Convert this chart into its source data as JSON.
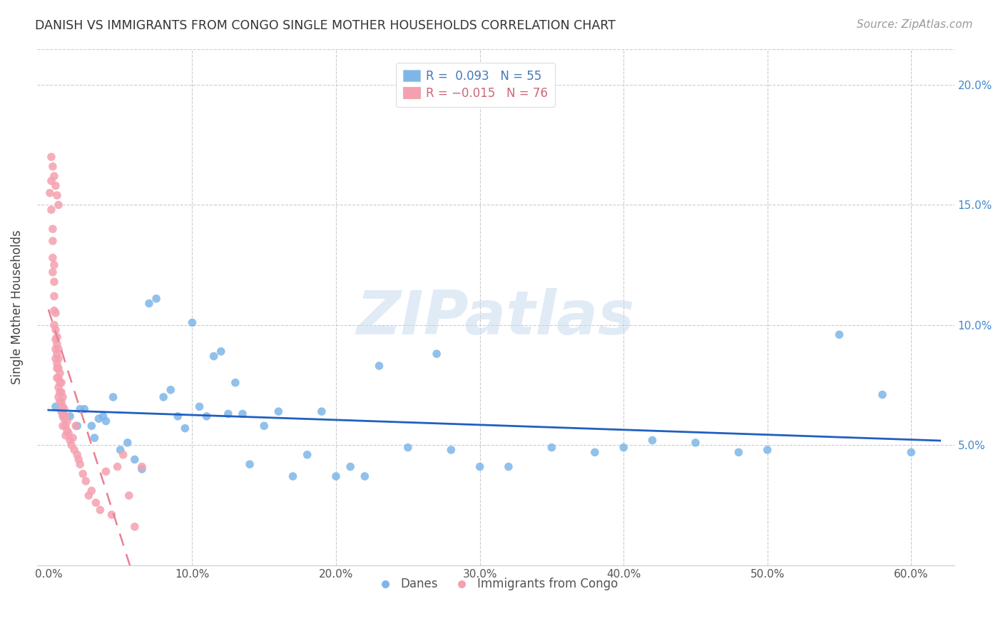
{
  "title": "DANISH VS IMMIGRANTS FROM CONGO SINGLE MOTHER HOUSEHOLDS CORRELATION CHART",
  "source": "Source: ZipAtlas.com",
  "ylabel": "Single Mother Households",
  "xlabel_ticks": [
    "0.0%",
    "10.0%",
    "20.0%",
    "30.0%",
    "40.0%",
    "50.0%",
    "60.0%"
  ],
  "xlabel_vals": [
    0.0,
    0.1,
    0.2,
    0.3,
    0.4,
    0.5,
    0.6
  ],
  "ylabel_ticks": [
    "5.0%",
    "10.0%",
    "15.0%",
    "20.0%"
  ],
  "ylabel_vals": [
    0.05,
    0.1,
    0.15,
    0.2
  ],
  "xlim": [
    -0.008,
    0.63
  ],
  "ylim": [
    0.0,
    0.215
  ],
  "danes_color": "#7EB6E8",
  "congo_color": "#F5A0B0",
  "danes_line_color": "#2060C0",
  "congo_line_color": "#E88090",
  "danes_R": 0.093,
  "danes_N": 55,
  "congo_R": -0.015,
  "congo_N": 76,
  "legend_label_danes": "Danes",
  "legend_label_congo": "Immigrants from Congo",
  "watermark": "ZIPatlas",
  "danes_x": [
    0.005,
    0.01,
    0.015,
    0.02,
    0.022,
    0.025,
    0.03,
    0.032,
    0.035,
    0.038,
    0.04,
    0.045,
    0.05,
    0.055,
    0.06,
    0.065,
    0.07,
    0.075,
    0.08,
    0.085,
    0.09,
    0.095,
    0.1,
    0.105,
    0.11,
    0.115,
    0.12,
    0.125,
    0.13,
    0.135,
    0.14,
    0.15,
    0.16,
    0.17,
    0.18,
    0.19,
    0.2,
    0.21,
    0.22,
    0.23,
    0.25,
    0.27,
    0.28,
    0.3,
    0.32,
    0.35,
    0.38,
    0.4,
    0.42,
    0.45,
    0.48,
    0.5,
    0.55,
    0.58,
    0.6
  ],
  "danes_y": [
    0.066,
    0.063,
    0.062,
    0.058,
    0.065,
    0.065,
    0.058,
    0.053,
    0.061,
    0.062,
    0.06,
    0.07,
    0.048,
    0.051,
    0.044,
    0.04,
    0.109,
    0.111,
    0.07,
    0.073,
    0.062,
    0.057,
    0.101,
    0.066,
    0.062,
    0.087,
    0.089,
    0.063,
    0.076,
    0.063,
    0.042,
    0.058,
    0.064,
    0.037,
    0.046,
    0.064,
    0.037,
    0.041,
    0.037,
    0.083,
    0.049,
    0.088,
    0.048,
    0.041,
    0.041,
    0.049,
    0.047,
    0.049,
    0.052,
    0.051,
    0.047,
    0.048,
    0.096,
    0.071,
    0.047
  ],
  "congo_x": [
    0.001,
    0.002,
    0.002,
    0.003,
    0.003,
    0.003,
    0.003,
    0.004,
    0.004,
    0.004,
    0.004,
    0.004,
    0.005,
    0.005,
    0.005,
    0.005,
    0.005,
    0.006,
    0.006,
    0.006,
    0.006,
    0.006,
    0.006,
    0.007,
    0.007,
    0.007,
    0.007,
    0.007,
    0.007,
    0.008,
    0.008,
    0.008,
    0.008,
    0.009,
    0.009,
    0.009,
    0.009,
    0.01,
    0.01,
    0.01,
    0.01,
    0.011,
    0.011,
    0.012,
    0.012,
    0.012,
    0.013,
    0.013,
    0.014,
    0.015,
    0.016,
    0.017,
    0.018,
    0.019,
    0.02,
    0.021,
    0.022,
    0.024,
    0.026,
    0.028,
    0.03,
    0.033,
    0.036,
    0.04,
    0.044,
    0.048,
    0.052,
    0.056,
    0.06,
    0.065,
    0.002,
    0.003,
    0.004,
    0.005,
    0.006,
    0.007
  ],
  "congo_y": [
    0.155,
    0.16,
    0.148,
    0.14,
    0.135,
    0.128,
    0.122,
    0.125,
    0.118,
    0.112,
    0.106,
    0.1,
    0.105,
    0.098,
    0.094,
    0.09,
    0.086,
    0.095,
    0.092,
    0.088,
    0.084,
    0.082,
    0.078,
    0.09,
    0.086,
    0.082,
    0.078,
    0.074,
    0.07,
    0.08,
    0.076,
    0.072,
    0.068,
    0.076,
    0.072,
    0.068,
    0.064,
    0.07,
    0.066,
    0.062,
    0.058,
    0.065,
    0.061,
    0.062,
    0.058,
    0.054,
    0.06,
    0.056,
    0.055,
    0.052,
    0.05,
    0.053,
    0.048,
    0.058,
    0.046,
    0.044,
    0.042,
    0.038,
    0.035,
    0.029,
    0.031,
    0.026,
    0.023,
    0.039,
    0.021,
    0.041,
    0.046,
    0.029,
    0.016,
    0.041,
    0.17,
    0.166,
    0.162,
    0.158,
    0.154,
    0.15
  ]
}
